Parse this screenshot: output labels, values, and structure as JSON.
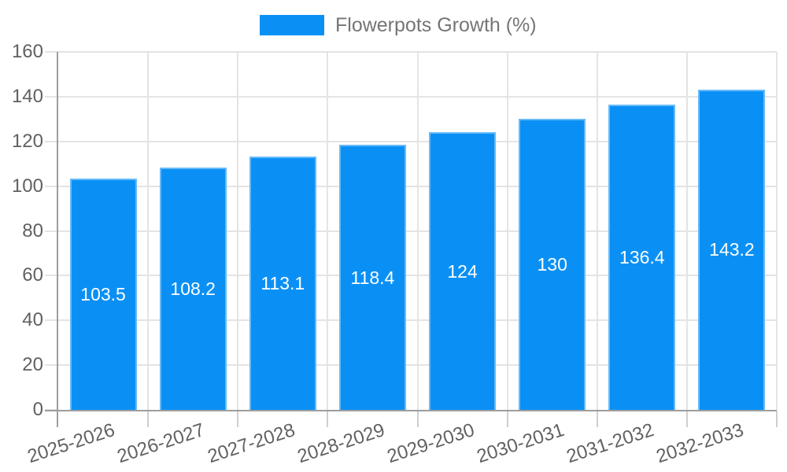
{
  "legend": {
    "label": "Flowerpots Growth (%)"
  },
  "chart_data": {
    "type": "bar",
    "title": "Flowerpots Growth (%)",
    "categories": [
      "2025-2026",
      "2026-2027",
      "2027-2028",
      "2028-2029",
      "2029-2030",
      "2030-2031",
      "2031-2032",
      "2032-2033"
    ],
    "values": [
      103.5,
      108.2,
      113.1,
      118.4,
      124,
      130,
      136.4,
      143.2
    ],
    "value_labels": [
      "103.5",
      "108.2",
      "113.1",
      "118.4",
      "124",
      "130",
      "136.4",
      "143.2"
    ],
    "series_name": "Flowerpots Growth (%)",
    "xlabel": "",
    "ylabel": "",
    "ylim": [
      0,
      160
    ],
    "ytick_step": 20,
    "ytick_labels": [
      "0",
      "20",
      "40",
      "60",
      "80",
      "100",
      "120",
      "140",
      "160"
    ],
    "grid": true,
    "legend_position": "top-center",
    "value_label_position": "center-of-bar",
    "xtick_rotation_deg": -18,
    "colors": {
      "bar_fill": "#0a90f5",
      "gridline": "#e4e4e4",
      "axis_line": "#9e9e9e",
      "minor_tick": "#cfcfcf",
      "tick_text": "#616161",
      "legend_text": "#757575",
      "value_label_text": "#ffffff",
      "background": "#ffffff"
    }
  }
}
